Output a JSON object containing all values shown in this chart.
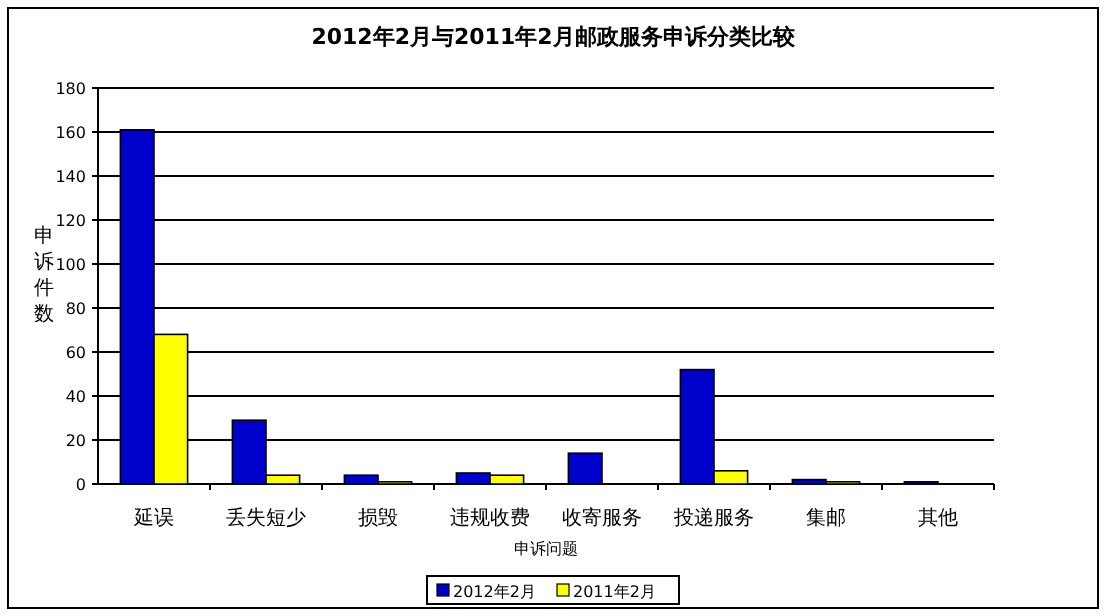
{
  "chart_data": {
    "type": "bar",
    "title": "2012年2月与2011年2月邮政服务申诉分类比较",
    "xlabel": "申诉问题",
    "ylabel": "申诉件数",
    "categories": [
      "延误",
      "丢失短少",
      "损毁",
      "违规收费",
      "收寄服务",
      "投递服务",
      "集邮",
      "其他"
    ],
    "series": [
      {
        "name": "2012年2月",
        "color": "#0000cc",
        "values": [
          161,
          29,
          4,
          5,
          14,
          52,
          2,
          1
        ]
      },
      {
        "name": "2011年2月",
        "color": "#ffff00",
        "values": [
          68,
          4,
          1,
          4,
          0,
          6,
          1,
          0
        ]
      }
    ],
    "ylim": [
      0,
      180
    ],
    "yticks": [
      0,
      20,
      40,
      60,
      80,
      100,
      120,
      140,
      160,
      180
    ],
    "grid": "y",
    "legend": "bottom"
  }
}
